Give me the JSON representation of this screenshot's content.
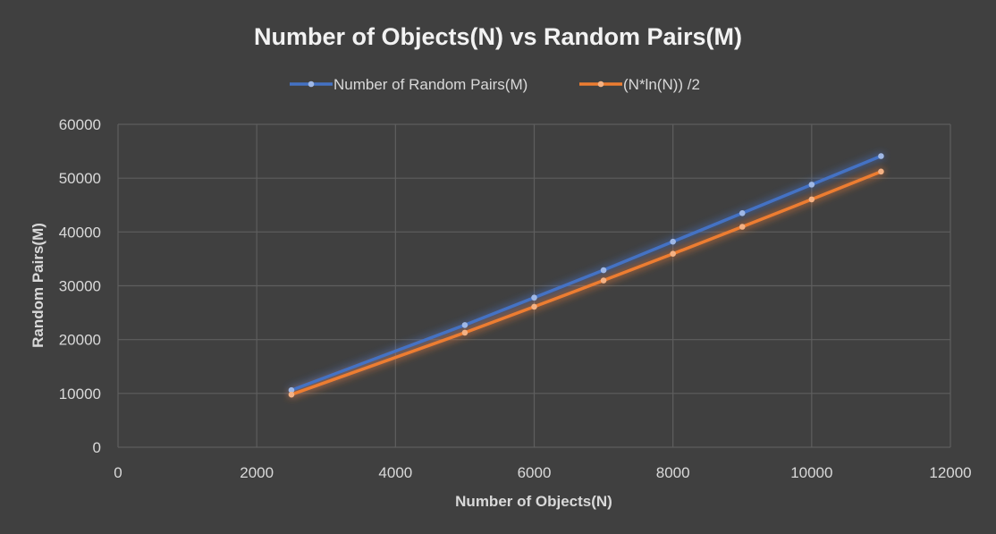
{
  "chart_data": {
    "type": "line",
    "title": "Number of Objects(N) vs Random Pairs(M)",
    "xlabel": "Number of Objects(N)",
    "ylabel": "Random Pairs(M)",
    "xlim": [
      0,
      12000
    ],
    "ylim": [
      0,
      60000
    ],
    "xticks": [
      0,
      2000,
      4000,
      6000,
      8000,
      10000,
      12000
    ],
    "yticks": [
      0,
      10000,
      20000,
      30000,
      40000,
      50000,
      60000
    ],
    "grid": true,
    "legend_position": "top",
    "x": [
      2500,
      5000,
      6000,
      7000,
      8000,
      9000,
      10000,
      11000
    ],
    "series": [
      {
        "name": "Number of Random Pairs(M)",
        "color": "#4472c4",
        "marker_color": "#9fb8e6",
        "values": [
          10600,
          22700,
          27800,
          32900,
          38200,
          43500,
          48800,
          54100
        ]
      },
      {
        "name": "(N*ln(N)) /2",
        "color": "#ed7d31",
        "marker_color": "#f4b183",
        "values": [
          9780,
          21290,
          26110,
          30990,
          35950,
          40970,
          46050,
          51220
        ]
      }
    ]
  }
}
